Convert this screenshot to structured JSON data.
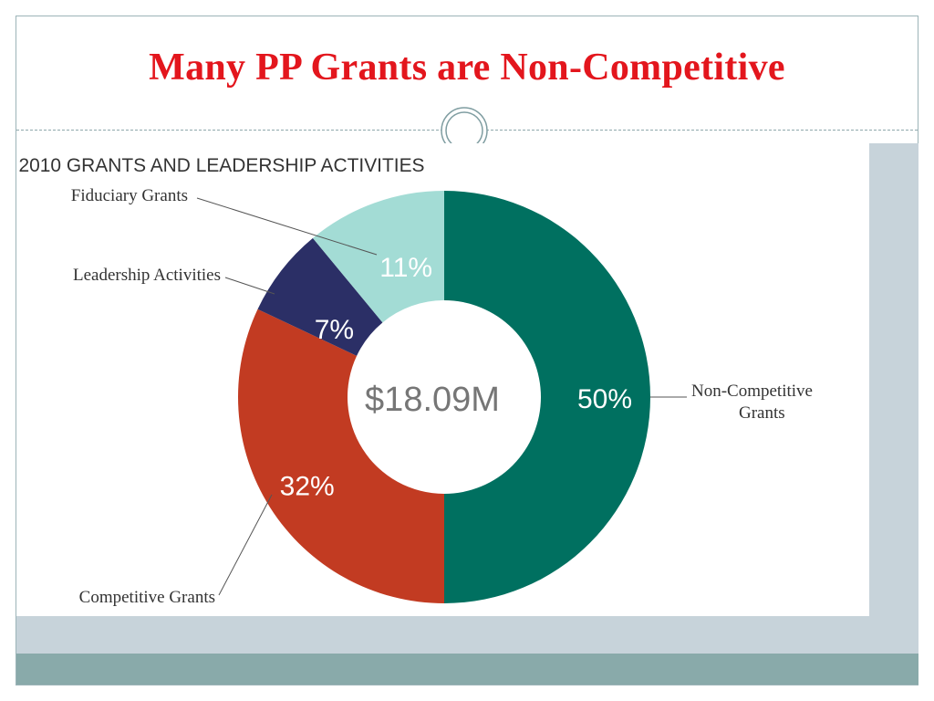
{
  "slide": {
    "title": "Many PP Grants are Non-Competitive"
  },
  "colors": {
    "title": "#e3161d",
    "frame": "#9cb4b8",
    "side_panel": "#c7d3da",
    "footer": "#89aaaa"
  },
  "chart_data": {
    "type": "donut",
    "title": "2010 GRANTS AND LEADERSHIP ACTIVITIES",
    "center_label": "$18.09M",
    "slices": [
      {
        "label": "Non-Competitive Grants",
        "value": 50,
        "display": "50%",
        "color": "#007060"
      },
      {
        "label": "Competitive Grants",
        "value": 32,
        "display": "32%",
        "color": "#c23b22"
      },
      {
        "label": "Leadership Activities",
        "value": 7,
        "display": "7%",
        "color": "#2b2f66"
      },
      {
        "label": "Fiduciary Grants",
        "value": 11,
        "display": "11%",
        "color": "#a3dcd5"
      }
    ]
  }
}
